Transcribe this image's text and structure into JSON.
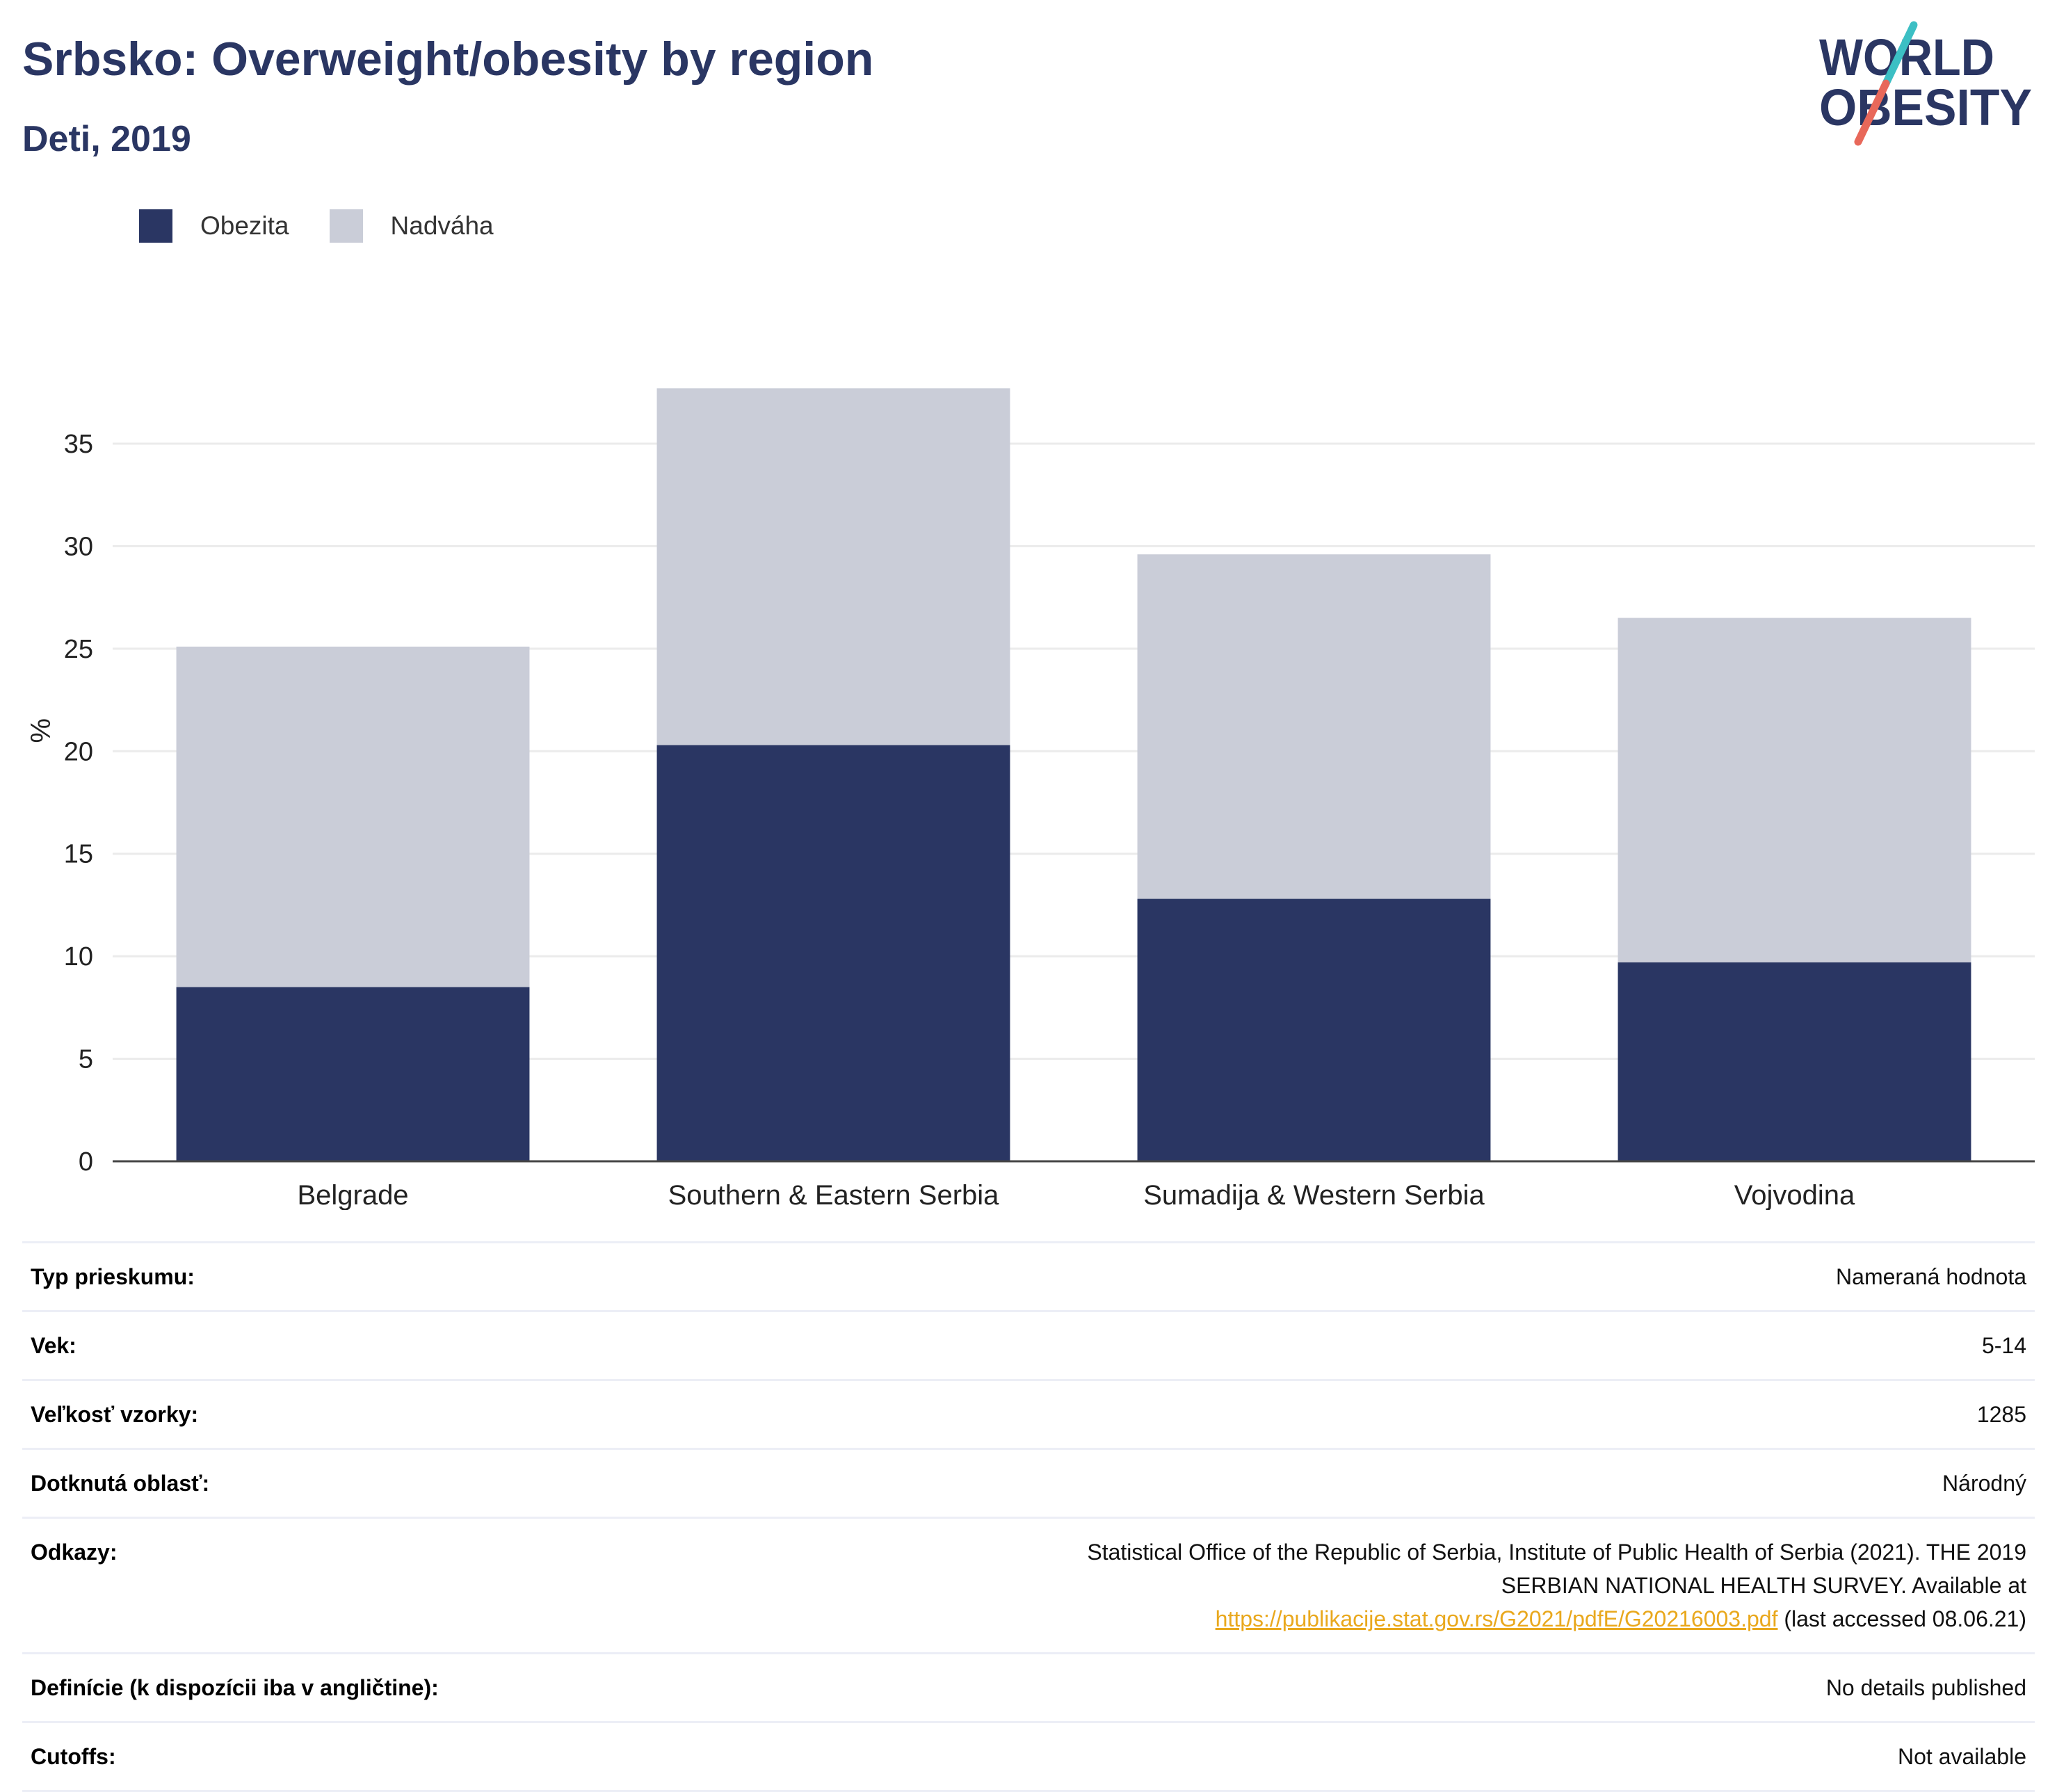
{
  "header": {
    "title": "Srbsko: Overweight/obesity by region",
    "subtitle": "Deti, 2019"
  },
  "logo": {
    "line1": "WORLD",
    "line2": "OBESITY",
    "colors": {
      "text": "#2a3663",
      "slash_top": "#3cbfc4",
      "slash_bottom": "#e8685a"
    }
  },
  "legend": {
    "items": [
      {
        "label": "Obezita",
        "color": "#2a3663"
      },
      {
        "label": "Nadváha",
        "color": "#cacdd8"
      }
    ]
  },
  "chart_data": {
    "type": "bar",
    "stacked": true,
    "categories": [
      "Belgrade",
      "Southern & Eastern Serbia",
      "Sumadija & Western Serbia",
      "Vojvodina"
    ],
    "series": [
      {
        "name": "Obezita",
        "color": "#2a3663",
        "values": [
          8.5,
          20.3,
          12.8,
          9.7
        ]
      },
      {
        "name": "Nadváha",
        "color": "#cacdd8",
        "values": [
          16.6,
          17.4,
          16.8,
          16.8
        ]
      }
    ],
    "ylabel": "%",
    "ylim": [
      0,
      39
    ],
    "yticks": [
      0,
      5,
      10,
      15,
      20,
      25,
      30,
      35
    ],
    "grid": true,
    "legend_position": "top-left"
  },
  "info": {
    "rows": [
      {
        "key": "Typ prieskumu:",
        "value": "Nameraná hodnota"
      },
      {
        "key": "Vek:",
        "value": "5-14"
      },
      {
        "key": "Veľkosť vzorky:",
        "value": "1285"
      },
      {
        "key": "Dotknutá oblasť:",
        "value": "Národný"
      }
    ],
    "references": {
      "key": "Odkazy:",
      "text_before": "Statistical Office of the Republic of Serbia, Institute of Public Health of Serbia (2021). THE 2019 SERBIAN NATIONAL HEALTH SURVEY. Available at ",
      "link": "https://publikacije.stat.gov.rs/G2021/pdfE/G20216003.pdf",
      "text_after": " (last accessed 08.06.21)"
    },
    "rows_after": [
      {
        "key": "Definície (k dispozícii iba v angličtine):",
        "value": "No details published"
      },
      {
        "key": "Cutoffs:",
        "value": "Not available"
      }
    ]
  }
}
